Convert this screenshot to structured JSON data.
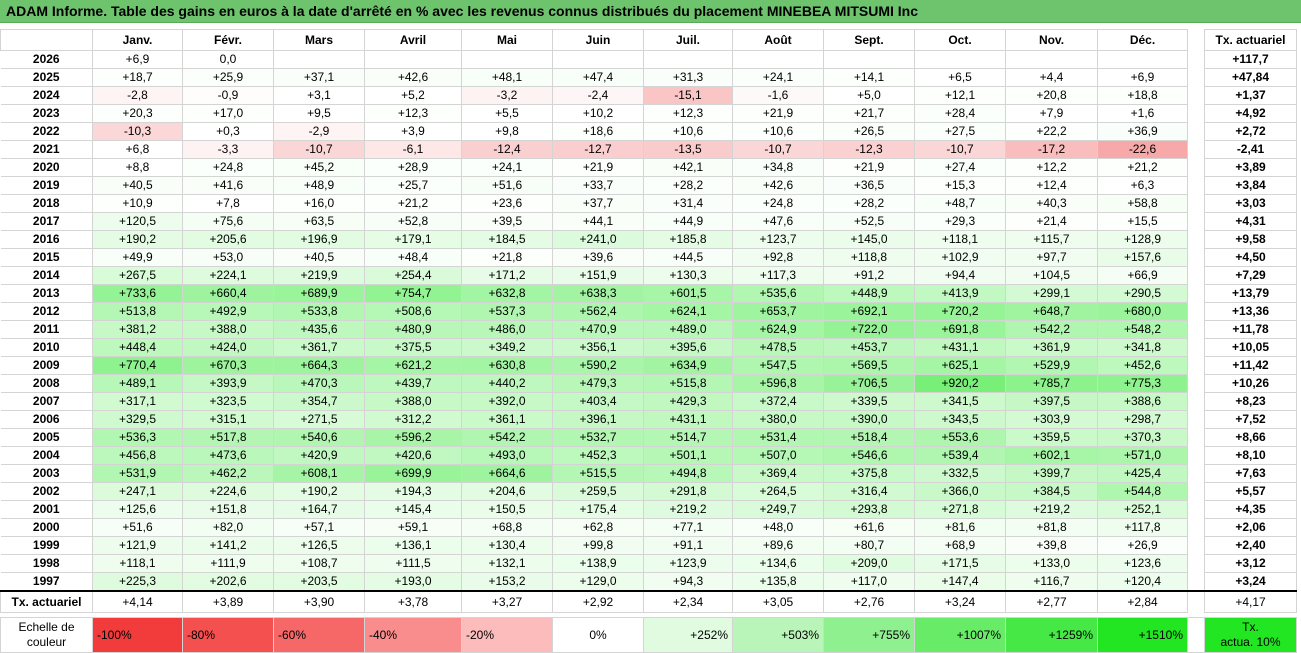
{
  "title": "ADAM Informe. Table des gains en euros à la date d'arrêté en % avec les revenus connus distribués du placement MINEBEA MITSUMI Inc",
  "months": [
    "Janv.",
    "Févr.",
    "Mars",
    "Avril",
    "Mai",
    "Juin",
    "Juil.",
    "Août",
    "Sept.",
    "Oct.",
    "Nov.",
    "Déc."
  ],
  "ta_header": "Tx. actuariel",
  "rows": [
    {
      "year": "2026",
      "vals": [
        "+6,9",
        "0,0",
        "",
        "",
        "",
        "",
        "",
        "",
        "",
        "",
        "",
        ""
      ],
      "ta": "+117,7"
    },
    {
      "year": "2025",
      "vals": [
        "+18,7",
        "+25,9",
        "+37,1",
        "+42,6",
        "+48,1",
        "+47,4",
        "+31,3",
        "+24,1",
        "+14,1",
        "+6,5",
        "+4,4",
        "+6,9"
      ],
      "ta": "+47,84"
    },
    {
      "year": "2024",
      "vals": [
        "-2,8",
        "-0,9",
        "+3,1",
        "+5,2",
        "-3,2",
        "-2,4",
        "-15,1",
        "-1,6",
        "+5,0",
        "+12,1",
        "+20,8",
        "+18,8"
      ],
      "ta": "+1,37"
    },
    {
      "year": "2023",
      "vals": [
        "+20,3",
        "+17,0",
        "+9,5",
        "+12,3",
        "+5,5",
        "+10,2",
        "+12,3",
        "+21,9",
        "+21,7",
        "+28,4",
        "+7,9",
        "+1,6"
      ],
      "ta": "+4,92"
    },
    {
      "year": "2022",
      "vals": [
        "-10,3",
        "+0,3",
        "-2,9",
        "+3,9",
        "+9,8",
        "+18,6",
        "+10,6",
        "+10,6",
        "+26,5",
        "+27,5",
        "+22,2",
        "+36,9"
      ],
      "ta": "+2,72"
    },
    {
      "year": "2021",
      "vals": [
        "+6,8",
        "-3,3",
        "-10,7",
        "-6,1",
        "-12,4",
        "-12,7",
        "-13,5",
        "-10,7",
        "-12,3",
        "-10,7",
        "-17,2",
        "-22,6"
      ],
      "ta": "-2,41"
    },
    {
      "year": "2020",
      "vals": [
        "+8,8",
        "+24,8",
        "+45,2",
        "+28,9",
        "+24,1",
        "+21,9",
        "+42,1",
        "+34,8",
        "+21,9",
        "+27,4",
        "+12,2",
        "+21,2"
      ],
      "ta": "+3,89"
    },
    {
      "year": "2019",
      "vals": [
        "+40,5",
        "+41,6",
        "+48,9",
        "+25,7",
        "+51,6",
        "+33,7",
        "+28,2",
        "+42,6",
        "+36,5",
        "+15,3",
        "+12,4",
        "+6,3"
      ],
      "ta": "+3,84"
    },
    {
      "year": "2018",
      "vals": [
        "+10,9",
        "+7,8",
        "+16,0",
        "+21,2",
        "+23,6",
        "+37,7",
        "+31,4",
        "+24,8",
        "+28,2",
        "+48,7",
        "+40,3",
        "+58,8"
      ],
      "ta": "+3,03"
    },
    {
      "year": "2017",
      "vals": [
        "+120,5",
        "+75,6",
        "+63,5",
        "+52,8",
        "+39,5",
        "+44,1",
        "+44,9",
        "+47,6",
        "+52,5",
        "+29,3",
        "+21,4",
        "+15,5"
      ],
      "ta": "+4,31"
    },
    {
      "year": "2016",
      "vals": [
        "+190,2",
        "+205,6",
        "+196,9",
        "+179,1",
        "+184,5",
        "+241,0",
        "+185,8",
        "+123,7",
        "+145,0",
        "+118,1",
        "+115,7",
        "+128,9"
      ],
      "ta": "+9,58"
    },
    {
      "year": "2015",
      "vals": [
        "+49,9",
        "+53,0",
        "+40,5",
        "+48,4",
        "+21,8",
        "+39,6",
        "+44,5",
        "+92,8",
        "+118,8",
        "+102,9",
        "+97,7",
        "+157,6"
      ],
      "ta": "+4,50"
    },
    {
      "year": "2014",
      "vals": [
        "+267,5",
        "+224,1",
        "+219,9",
        "+254,4",
        "+171,2",
        "+151,9",
        "+130,3",
        "+117,3",
        "+91,2",
        "+94,4",
        "+104,5",
        "+66,9"
      ],
      "ta": "+7,29"
    },
    {
      "year": "2013",
      "vals": [
        "+733,6",
        "+660,4",
        "+689,9",
        "+754,7",
        "+632,8",
        "+638,3",
        "+601,5",
        "+535,6",
        "+448,9",
        "+413,9",
        "+299,1",
        "+290,5"
      ],
      "ta": "+13,79"
    },
    {
      "year": "2012",
      "vals": [
        "+513,8",
        "+492,9",
        "+533,8",
        "+508,6",
        "+537,3",
        "+562,4",
        "+624,1",
        "+653,7",
        "+692,1",
        "+720,2",
        "+648,7",
        "+680,0"
      ],
      "ta": "+13,36"
    },
    {
      "year": "2011",
      "vals": [
        "+381,2",
        "+388,0",
        "+435,6",
        "+480,9",
        "+486,0",
        "+470,9",
        "+489,0",
        "+624,9",
        "+722,0",
        "+691,8",
        "+542,2",
        "+548,2"
      ],
      "ta": "+11,78"
    },
    {
      "year": "2010",
      "vals": [
        "+448,4",
        "+424,0",
        "+361,7",
        "+375,5",
        "+349,2",
        "+356,1",
        "+395,6",
        "+478,5",
        "+453,7",
        "+431,1",
        "+361,9",
        "+341,8"
      ],
      "ta": "+10,05"
    },
    {
      "year": "2009",
      "vals": [
        "+770,4",
        "+670,3",
        "+664,3",
        "+621,2",
        "+630,8",
        "+590,2",
        "+634,9",
        "+547,5",
        "+569,5",
        "+625,1",
        "+529,9",
        "+452,6"
      ],
      "ta": "+11,42"
    },
    {
      "year": "2008",
      "vals": [
        "+489,1",
        "+393,9",
        "+470,3",
        "+439,7",
        "+440,2",
        "+479,3",
        "+515,8",
        "+596,8",
        "+706,5",
        "+920,2",
        "+785,7",
        "+775,3"
      ],
      "ta": "+10,26"
    },
    {
      "year": "2007",
      "vals": [
        "+317,1",
        "+323,5",
        "+354,7",
        "+388,0",
        "+392,0",
        "+403,4",
        "+429,3",
        "+372,4",
        "+339,5",
        "+341,5",
        "+397,5",
        "+388,6"
      ],
      "ta": "+8,23"
    },
    {
      "year": "2006",
      "vals": [
        "+329,5",
        "+315,1",
        "+271,5",
        "+312,2",
        "+361,1",
        "+396,1",
        "+431,1",
        "+380,0",
        "+390,0",
        "+343,5",
        "+303,9",
        "+298,7"
      ],
      "ta": "+7,52"
    },
    {
      "year": "2005",
      "vals": [
        "+536,3",
        "+517,8",
        "+540,6",
        "+596,2",
        "+542,2",
        "+532,7",
        "+514,7",
        "+531,4",
        "+518,4",
        "+553,6",
        "+359,5",
        "+370,3"
      ],
      "ta": "+8,66"
    },
    {
      "year": "2004",
      "vals": [
        "+456,8",
        "+473,6",
        "+420,9",
        "+420,6",
        "+493,0",
        "+452,3",
        "+501,1",
        "+507,0",
        "+546,6",
        "+539,4",
        "+602,1",
        "+571,0"
      ],
      "ta": "+8,10"
    },
    {
      "year": "2003",
      "vals": [
        "+531,9",
        "+462,2",
        "+608,1",
        "+699,9",
        "+664,6",
        "+515,5",
        "+494,8",
        "+369,4",
        "+375,8",
        "+332,5",
        "+399,7",
        "+425,4"
      ],
      "ta": "+7,63"
    },
    {
      "year": "2002",
      "vals": [
        "+247,1",
        "+224,6",
        "+190,2",
        "+194,3",
        "+204,6",
        "+259,5",
        "+291,8",
        "+264,5",
        "+316,4",
        "+366,0",
        "+384,5",
        "+544,8"
      ],
      "ta": "+5,57"
    },
    {
      "year": "2001",
      "vals": [
        "+125,6",
        "+151,8",
        "+164,7",
        "+145,4",
        "+150,5",
        "+175,4",
        "+219,2",
        "+249,7",
        "+293,8",
        "+271,8",
        "+219,2",
        "+252,1"
      ],
      "ta": "+4,35"
    },
    {
      "year": "2000",
      "vals": [
        "+51,6",
        "+82,0",
        "+57,1",
        "+59,1",
        "+68,8",
        "+62,8",
        "+77,1",
        "+48,0",
        "+61,6",
        "+81,6",
        "+81,8",
        "+117,8"
      ],
      "ta": "+2,06"
    },
    {
      "year": "1999",
      "vals": [
        "+121,9",
        "+141,2",
        "+126,5",
        "+136,1",
        "+130,4",
        "+99,8",
        "+91,1",
        "+89,6",
        "+80,7",
        "+68,9",
        "+39,8",
        "+26,9"
      ],
      "ta": "+2,40"
    },
    {
      "year": "1998",
      "vals": [
        "+118,1",
        "+111,9",
        "+108,7",
        "+111,5",
        "+132,1",
        "+138,9",
        "+123,9",
        "+134,6",
        "+209,0",
        "+171,5",
        "+133,0",
        "+123,6"
      ],
      "ta": "+3,12"
    },
    {
      "year": "1997",
      "vals": [
        "+225,3",
        "+202,6",
        "+203,5",
        "+193,0",
        "+153,2",
        "+129,0",
        "+94,3",
        "+135,8",
        "+117,0",
        "+147,4",
        "+116,7",
        "+120,4"
      ],
      "ta": "+3,24"
    }
  ],
  "footer": {
    "label": "Tx. actuariel",
    "vals": [
      "+4,14",
      "+3,89",
      "+3,90",
      "+3,78",
      "+3,27",
      "+2,92",
      "+2,34",
      "+3,05",
      "+2,76",
      "+3,24",
      "+2,77",
      "+2,84"
    ],
    "ta": "+4,17"
  },
  "scale": {
    "label_line1": "Echelle de",
    "label_line2": "couleur",
    "items": [
      {
        "text": "-100%",
        "color": "#f23c3c",
        "kind": "neg"
      },
      {
        "text": "-80%",
        "color": "#f45050",
        "kind": "neg"
      },
      {
        "text": "-60%",
        "color": "#f66868",
        "kind": "neg"
      },
      {
        "text": "-40%",
        "color": "#f98d8d",
        "kind": "neg"
      },
      {
        "text": "-20%",
        "color": "#fcbcbc",
        "kind": "neg"
      },
      {
        "text": "0%",
        "color": "#ffffff",
        "kind": "zero"
      },
      {
        "text": "+252%",
        "color": "#e0fbe0",
        "kind": "pos"
      },
      {
        "text": "+503%",
        "color": "#b9f5b9",
        "kind": "pos"
      },
      {
        "text": "+755%",
        "color": "#8ff08f",
        "kind": "pos"
      },
      {
        "text": "+1007%",
        "color": "#68ec68",
        "kind": "pos"
      },
      {
        "text": "+1259%",
        "color": "#45e845",
        "kind": "pos"
      },
      {
        "text": "+1510%",
        "color": "#22e622",
        "kind": "pos"
      }
    ],
    "tx_line1": "Tx.",
    "tx_line2": "actua. 10%"
  },
  "colors": {
    "title_bg": "#6dc46d",
    "positive_max": "#22e622",
    "negative_max": "#f23c3c"
  }
}
